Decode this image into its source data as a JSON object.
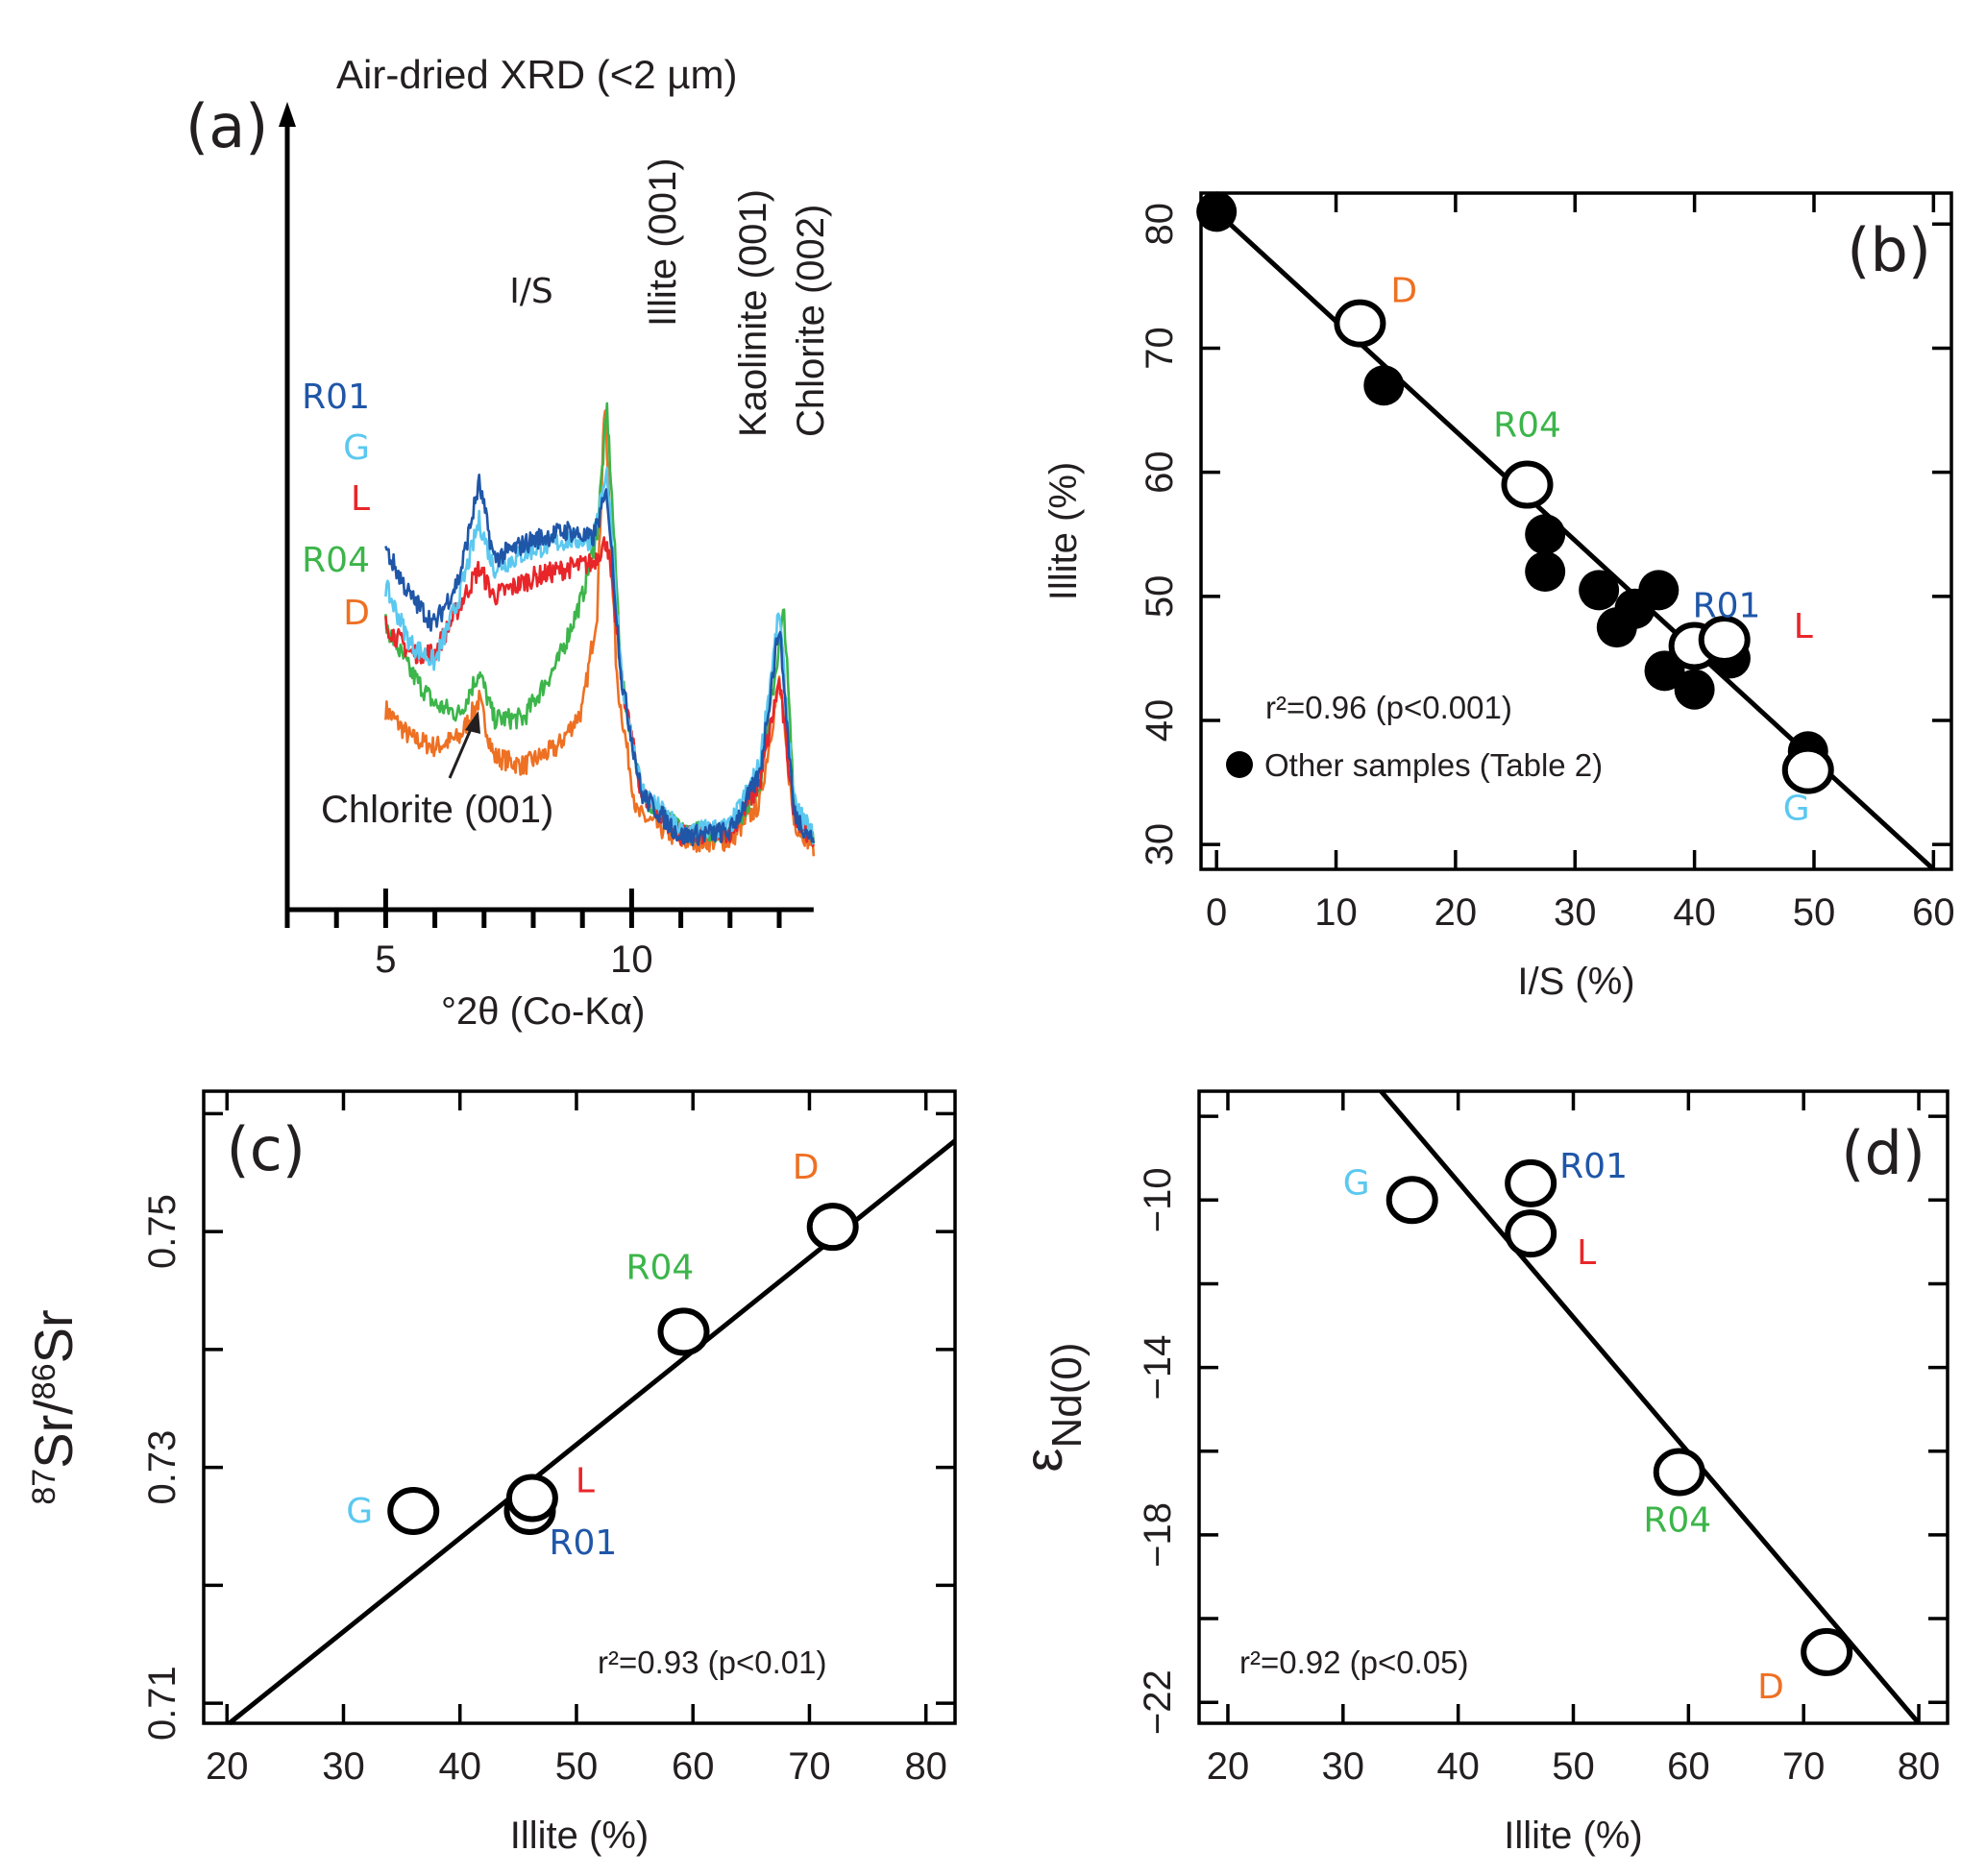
{
  "figure": {
    "panels": [
      "(a)",
      "(b)",
      "(c)",
      "(d)"
    ]
  },
  "samples": [
    {
      "id": "R01",
      "color": "#1f56a8"
    },
    {
      "id": "G",
      "color": "#5bc8f0"
    },
    {
      "id": "L",
      "color": "#e8262a"
    },
    {
      "id": "R04",
      "color": "#3cb54a"
    },
    {
      "id": "D",
      "color": "#ee7023"
    }
  ],
  "chart_data": [
    {
      "panel": "(a)",
      "type": "line",
      "title": "Air-dried XRD (<2 µm)",
      "xlabel": "°2θ (Co-Kα)",
      "ylabel": "",
      "xlim": [
        3,
        13.7
      ],
      "xticks_labeled": [
        5,
        10
      ],
      "xticks_minor": [
        3,
        4,
        5,
        6,
        7,
        8,
        9,
        10,
        11,
        12,
        13
      ],
      "annotations": [
        "I/S",
        "Illite (001)",
        "Kaolinite (001)",
        "Chlorite (002)",
        "Chlorite (001)"
      ],
      "legend_order": [
        "R01",
        "G",
        "L",
        "R04",
        "D"
      ],
      "series": [
        {
          "name": "R01",
          "offset": 0.62,
          "profile": [
            [
              5.0,
              0.68
            ],
            [
              5.5,
              0.58
            ],
            [
              6.0,
              0.52
            ],
            [
              6.5,
              0.62
            ],
            [
              6.9,
              0.82
            ],
            [
              7.2,
              0.66
            ],
            [
              8.0,
              0.7
            ],
            [
              8.7,
              0.72
            ],
            [
              9.2,
              0.7
            ],
            [
              9.5,
              0.8
            ],
            [
              9.8,
              0.4
            ],
            [
              10.2,
              0.16
            ],
            [
              11.0,
              0.07
            ],
            [
              12.0,
              0.08
            ],
            [
              12.6,
              0.2
            ],
            [
              13.0,
              0.52
            ],
            [
              13.3,
              0.12
            ],
            [
              13.7,
              0.06
            ]
          ]
        },
        {
          "name": "G",
          "offset": 0.58,
          "profile": [
            [
              5.0,
              0.6
            ],
            [
              5.5,
              0.48
            ],
            [
              6.0,
              0.44
            ],
            [
              6.5,
              0.58
            ],
            [
              6.9,
              0.74
            ],
            [
              7.2,
              0.64
            ],
            [
              8.0,
              0.68
            ],
            [
              8.7,
              0.7
            ],
            [
              9.2,
              0.7
            ],
            [
              9.5,
              0.84
            ],
            [
              9.8,
              0.4
            ],
            [
              10.2,
              0.17
            ],
            [
              11.0,
              0.08
            ],
            [
              12.0,
              0.09
            ],
            [
              12.6,
              0.22
            ],
            [
              13.0,
              0.55
            ],
            [
              13.3,
              0.14
            ],
            [
              13.7,
              0.07
            ]
          ]
        },
        {
          "name": "L",
          "offset": 0.5,
          "profile": [
            [
              5.0,
              0.52
            ],
            [
              5.5,
              0.46
            ],
            [
              6.0,
              0.46
            ],
            [
              6.5,
              0.56
            ],
            [
              6.9,
              0.64
            ],
            [
              7.2,
              0.58
            ],
            [
              8.0,
              0.62
            ],
            [
              8.7,
              0.64
            ],
            [
              9.2,
              0.65
            ],
            [
              9.5,
              0.7
            ],
            [
              9.8,
              0.4
            ],
            [
              10.2,
              0.16
            ],
            [
              11.0,
              0.07
            ],
            [
              12.0,
              0.08
            ],
            [
              12.6,
              0.18
            ],
            [
              13.0,
              0.4
            ],
            [
              13.3,
              0.12
            ],
            [
              13.7,
              0.06
            ]
          ]
        },
        {
          "name": "R04",
          "offset": 0.4,
          "profile": [
            [
              5.0,
              0.52
            ],
            [
              5.5,
              0.42
            ],
            [
              6.0,
              0.35
            ],
            [
              6.5,
              0.33
            ],
            [
              6.9,
              0.42
            ],
            [
              7.2,
              0.32
            ],
            [
              7.8,
              0.32
            ],
            [
              8.5,
              0.44
            ],
            [
              9.0,
              0.58
            ],
            [
              9.3,
              0.72
            ],
            [
              9.5,
              0.98
            ],
            [
              9.8,
              0.4
            ],
            [
              10.2,
              0.16
            ],
            [
              11.0,
              0.08
            ],
            [
              12.0,
              0.08
            ],
            [
              12.6,
              0.18
            ],
            [
              13.1,
              0.55
            ],
            [
              13.3,
              0.14
            ],
            [
              13.7,
              0.06
            ]
          ]
        },
        {
          "name": "D",
          "offset": 0.3,
          "profile": [
            [
              5.0,
              0.34
            ],
            [
              5.5,
              0.28
            ],
            [
              6.0,
              0.26
            ],
            [
              6.5,
              0.28
            ],
            [
              6.9,
              0.36
            ],
            [
              7.2,
              0.24
            ],
            [
              7.8,
              0.22
            ],
            [
              8.5,
              0.26
            ],
            [
              9.0,
              0.34
            ],
            [
              9.3,
              0.55
            ],
            [
              9.45,
              1.0
            ],
            [
              9.7,
              0.4
            ],
            [
              10.1,
              0.12
            ],
            [
              11.0,
              0.06
            ],
            [
              12.0,
              0.06
            ],
            [
              12.6,
              0.14
            ],
            [
              13.0,
              0.4
            ],
            [
              13.3,
              0.1
            ],
            [
              13.7,
              0.05
            ]
          ]
        }
      ]
    },
    {
      "panel": "(b)",
      "type": "scatter",
      "xlabel": "I/S (%)",
      "ylabel": "Illite (%)",
      "xlim": [
        -1.3,
        61.5
      ],
      "ylim": [
        28,
        82.5
      ],
      "xticks": [
        0,
        10,
        20,
        30,
        40,
        50,
        60
      ],
      "yticks": [
        30,
        40,
        50,
        60,
        70,
        80
      ],
      "fit": {
        "x": [
          0,
          60
        ],
        "y": [
          81,
          28
        ]
      },
      "stat_label": "r²=0.96 (p<0.001)",
      "legend": [
        {
          "label": "Other samples (Table 2)",
          "marker": "filled-circle",
          "placement": "bottom-left"
        }
      ],
      "filled_points": [
        [
          0,
          81
        ],
        [
          14,
          67
        ],
        [
          27.5,
          55
        ],
        [
          27.5,
          52
        ],
        [
          32,
          50.5
        ],
        [
          33.5,
          47.5
        ],
        [
          35,
          49
        ],
        [
          37,
          50.5
        ],
        [
          37.5,
          44
        ],
        [
          40,
          42.5
        ],
        [
          42.5,
          46.5
        ],
        [
          43,
          45
        ],
        [
          49.5,
          37.5
        ]
      ],
      "open_points": [
        {
          "label": "D",
          "x": 12,
          "y": 72
        },
        {
          "label": "R04",
          "x": 26,
          "y": 59
        },
        {
          "label": "R01",
          "x": 40,
          "y": 46
        },
        {
          "label": "L",
          "x": 42.5,
          "y": 46.5
        },
        {
          "label": "G",
          "x": 49.5,
          "y": 36
        }
      ]
    },
    {
      "panel": "(c)",
      "type": "scatter",
      "xlabel": "Illite (%)",
      "ylabel": "87Sr/86Sr",
      "xlim": [
        18,
        82.5
      ],
      "ylim": [
        0.7083,
        0.7619
      ],
      "xticks": [
        20,
        30,
        40,
        50,
        60,
        70,
        80
      ],
      "yticks_labeled": [
        0.71,
        0.73,
        0.75
      ],
      "yticks_minor": [
        0.71,
        0.72,
        0.73,
        0.74,
        0.75,
        0.76
      ],
      "fit": {
        "x": [
          20.2,
          82.5
        ],
        "y": [
          0.7083,
          0.7577
        ]
      },
      "stat_label": "r²=0.93 (p<0.01)",
      "points": [
        {
          "label": "G",
          "x": 36,
          "y": 0.7263
        },
        {
          "label": "R01",
          "x": 46,
          "y": 0.7263
        },
        {
          "label": "L",
          "x": 46.2,
          "y": 0.7274
        },
        {
          "label": "R04",
          "x": 59.2,
          "y": 0.7415
        },
        {
          "label": "D",
          "x": 72,
          "y": 0.7504
        }
      ]
    },
    {
      "panel": "(d)",
      "type": "scatter",
      "xlabel": "Illite (%)",
      "ylabel": "εNd(0)",
      "xlim": [
        17.5,
        82.5
      ],
      "ylim": [
        -22.5,
        -7.4
      ],
      "xticks": [
        20,
        30,
        40,
        50,
        60,
        70,
        80
      ],
      "yticks_labeled": [
        -10,
        -14,
        -18,
        -22
      ],
      "yticks_minor": [
        -8,
        -10,
        -12,
        -14,
        -16,
        -18,
        -20,
        -22
      ],
      "fit": {
        "x": [
          33.3,
          80
        ],
        "y": [
          -7.4,
          -22.5
        ]
      },
      "stat_label": "r²=0.92 (p<0.05)",
      "points": [
        {
          "label": "G",
          "x": 36,
          "y": -10
        },
        {
          "label": "R01",
          "x": 46.3,
          "y": -9.6
        },
        {
          "label": "L",
          "x": 46.3,
          "y": -10.8
        },
        {
          "label": "R04",
          "x": 59.2,
          "y": -16.5
        },
        {
          "label": "D",
          "x": 72,
          "y": -20.8
        }
      ]
    }
  ]
}
